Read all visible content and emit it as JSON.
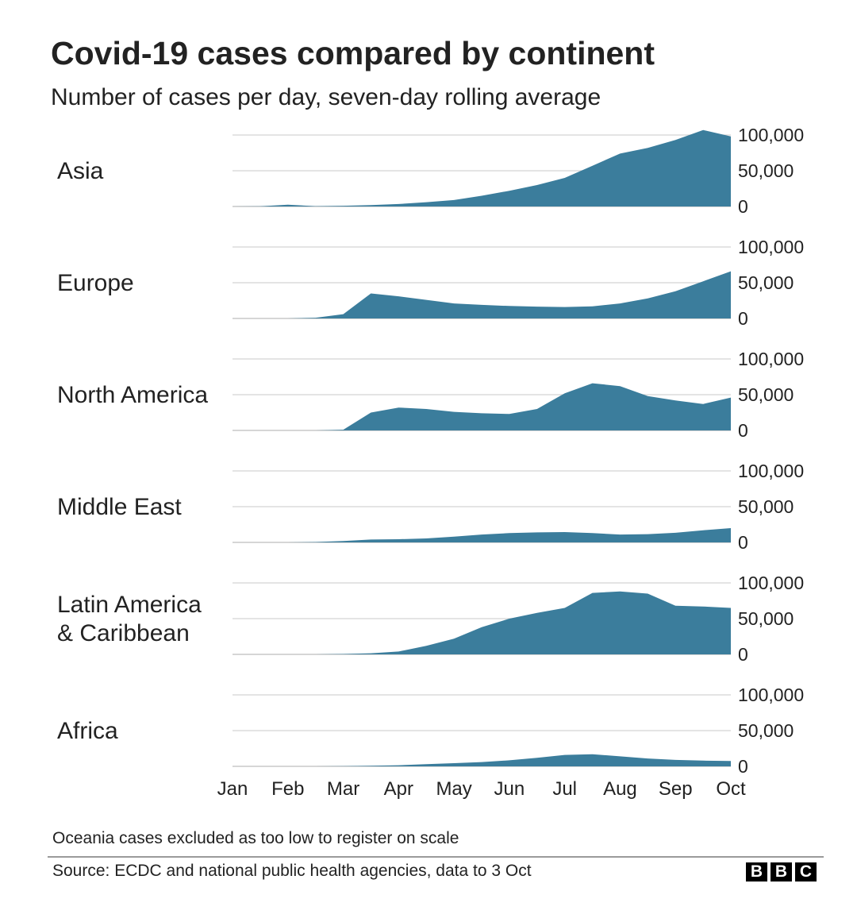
{
  "title": "Covid-19 cases compared by continent",
  "subtitle": "Number of cases per day, seven-day rolling average",
  "footnote": "Oceania cases excluded as too low to register on scale",
  "source": "Source: ECDC and national public health agencies, data to 3 Oct",
  "logo": [
    "B",
    "B",
    "C"
  ],
  "colors": {
    "area": "#3b7d9c",
    "grid": "#d4d4d4",
    "text": "#222222"
  },
  "chart_data": {
    "type": "area",
    "title": "Covid-19 cases compared by continent",
    "subtitle": "Number of cases per day, seven-day rolling average",
    "x_labels": [
      "Jan",
      "Feb",
      "Mar",
      "Apr",
      "May",
      "Jun",
      "Jul",
      "Aug",
      "Sep",
      "Oct"
    ],
    "x": [
      1,
      1.5,
      2,
      2.5,
      3,
      3.5,
      4,
      4.5,
      5,
      5.5,
      6,
      6.5,
      7,
      7.5,
      8,
      8.5,
      9,
      9.5,
      10
    ],
    "x_unit": "month (1 = 1 Jan, 10 = 1 Oct, last point = 3 Oct)",
    "ylim": [
      0,
      100000
    ],
    "y_ticks": [
      "100,000",
      "50,000",
      "0"
    ],
    "series": [
      {
        "name": "Asia",
        "values": [
          0,
          200,
          2500,
          500,
          1000,
          2000,
          3500,
          6000,
          9000,
          15000,
          22000,
          30000,
          40000,
          57000,
          74000,
          82000,
          93000,
          107000,
          98000
        ]
      },
      {
        "name": "Europe",
        "values": [
          0,
          0,
          0,
          1000,
          6000,
          35000,
          31000,
          26000,
          21000,
          19000,
          17500,
          16500,
          16000,
          17000,
          21000,
          28000,
          38000,
          52000,
          66000
        ]
      },
      {
        "name": "North America",
        "values": [
          0,
          0,
          0,
          0,
          1000,
          25000,
          32000,
          30000,
          26000,
          24000,
          23000,
          30000,
          52000,
          66000,
          62000,
          48000,
          42000,
          37000,
          46000
        ]
      },
      {
        "name": "Middle East",
        "values": [
          0,
          0,
          0,
          500,
          2000,
          4000,
          4500,
          5500,
          8000,
          11000,
          13000,
          14000,
          14500,
          13000,
          11000,
          11500,
          13500,
          17000,
          20000
        ]
      },
      {
        "name": "Latin America\n& Caribbean",
        "values": [
          0,
          0,
          0,
          0,
          500,
          1500,
          4000,
          12000,
          22000,
          38000,
          50000,
          58000,
          65000,
          86000,
          88000,
          85000,
          68000,
          67000,
          65000
        ]
      },
      {
        "name": "Africa",
        "values": [
          0,
          0,
          0,
          0,
          300,
          800,
          1500,
          3000,
          4500,
          6000,
          8500,
          12000,
          16000,
          17000,
          14000,
          11000,
          9000,
          8000,
          7500
        ]
      }
    ]
  }
}
